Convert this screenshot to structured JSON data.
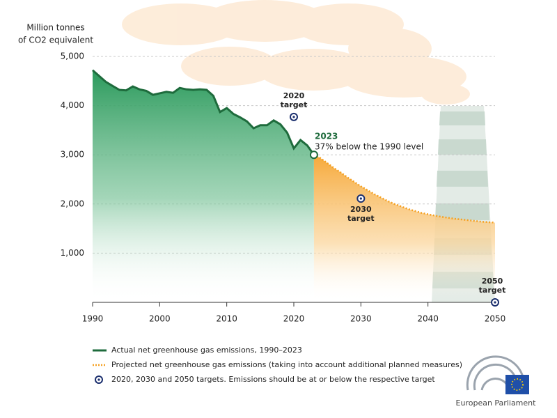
{
  "chart_data": {
    "type": "area",
    "y_label": [
      "Million tonnes",
      "of CO2 equivalent"
    ],
    "xlim": [
      1990,
      2050
    ],
    "xticks": [
      1990,
      2000,
      2010,
      2020,
      2030,
      2040,
      2050
    ],
    "ylim": [
      0,
      5000
    ],
    "yticks": [
      {
        "value": 1000,
        "label": "1,000"
      },
      {
        "value": 2000,
        "label": "2,000"
      },
      {
        "value": 3000,
        "label": "3,000"
      },
      {
        "value": 4000,
        "label": "4,000"
      },
      {
        "value": 5000,
        "label": "5,000"
      }
    ],
    "grid": true,
    "series": [
      {
        "name": "Actual net greenhouse gas emissions, 1990–2023",
        "color": "#1e6b3c",
        "x": [
          1990,
          1991,
          1992,
          1993,
          1994,
          1995,
          1996,
          1997,
          1998,
          1999,
          2000,
          2001,
          2002,
          2003,
          2004,
          2005,
          2006,
          2007,
          2008,
          2009,
          2010,
          2011,
          2012,
          2013,
          2014,
          2015,
          2016,
          2017,
          2018,
          2019,
          2020,
          2021,
          2022,
          2023
        ],
        "values": [
          4720,
          4600,
          4480,
          4400,
          4320,
          4310,
          4390,
          4330,
          4300,
          4220,
          4250,
          4280,
          4260,
          4360,
          4330,
          4320,
          4330,
          4320,
          4200,
          3870,
          3950,
          3830,
          3760,
          3680,
          3540,
          3600,
          3600,
          3700,
          3620,
          3450,
          3130,
          3300,
          3190,
          3000
        ]
      },
      {
        "name": "Projected net greenhouse gas emissions (taking into account additional planned measures)",
        "color": "#f5a020",
        "x": [
          2023,
          2024,
          2025,
          2026,
          2027,
          2028,
          2029,
          2030,
          2031,
          2032,
          2033,
          2034,
          2035,
          2036,
          2037,
          2038,
          2039,
          2040,
          2042,
          2044,
          2046,
          2048,
          2050
        ],
        "values": [
          3000,
          2930,
          2830,
          2730,
          2640,
          2540,
          2450,
          2360,
          2280,
          2200,
          2130,
          2060,
          2000,
          1950,
          1900,
          1860,
          1820,
          1790,
          1740,
          1700,
          1670,
          1640,
          1620
        ]
      },
      {
        "name": "2020, 2030 and 2050 targets. Emissions should be at or below the respective target",
        "color": "#1b2f6e",
        "x": [
          2020,
          2030,
          2050
        ],
        "values": [
          3770,
          2110,
          0
        ],
        "labels": [
          [
            "2020",
            "target"
          ],
          [
            "2030",
            "target"
          ],
          [
            "2050",
            "target"
          ]
        ]
      }
    ],
    "annotation": {
      "x": 2023,
      "title": "2023",
      "text": "37% below the 1990 level"
    }
  },
  "logo": "European Parliament"
}
